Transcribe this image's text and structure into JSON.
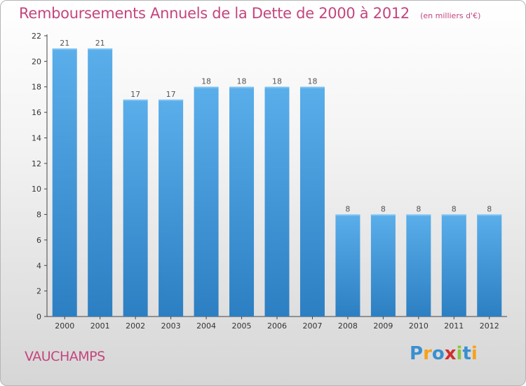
{
  "title": "Remboursements Annuels de la Dette de 2000 à 2012",
  "unit": "(en milliers d'€)",
  "commune": "VAUCHAMPS",
  "logo": {
    "text": "Proxiti",
    "letters": [
      "P",
      "r",
      "o",
      "x",
      "i",
      "t",
      "i"
    ],
    "colors": [
      "#3a8fd0",
      "#f7a21b",
      "#3a8fd0",
      "#d12e2e",
      "#8bc53f",
      "#3a8fd0",
      "#f7a21b"
    ]
  },
  "colors": {
    "bar_light": "#5aaeea",
    "bar_dark": "#2c7fc2",
    "title": "#c4457e",
    "axis": "#444444"
  },
  "chart_data": {
    "type": "bar",
    "categories": [
      "2000",
      "2001",
      "2002",
      "2003",
      "2004",
      "2005",
      "2006",
      "2007",
      "2008",
      "2009",
      "2010",
      "2011",
      "2012"
    ],
    "values": [
      21,
      21,
      17,
      17,
      18,
      18,
      18,
      18,
      8,
      8,
      8,
      8,
      8
    ],
    "data_labels": [
      "21",
      "21",
      "17",
      "17",
      "18",
      "18",
      "18",
      "18",
      "8",
      "8",
      "8",
      "8",
      "8"
    ],
    "ylim": [
      0,
      22
    ],
    "yticks": [
      0,
      2,
      4,
      6,
      8,
      10,
      12,
      14,
      16,
      18,
      20,
      22
    ],
    "grid": false,
    "xlabel": "",
    "ylabel": ""
  }
}
